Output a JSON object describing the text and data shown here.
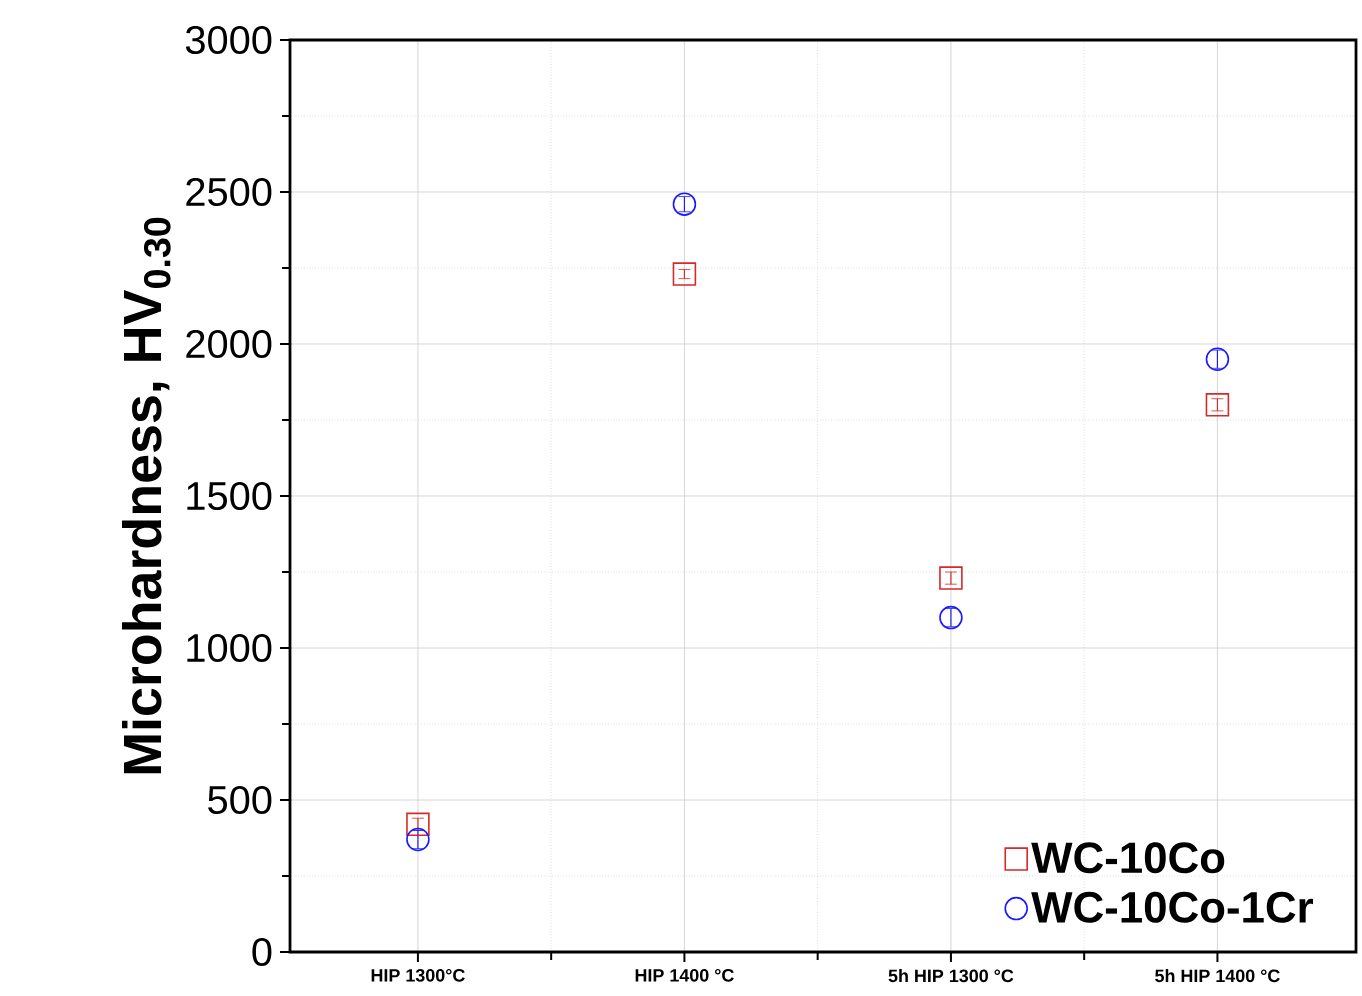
{
  "chart_data": {
    "type": "scatter",
    "ylabel": "Microhardness, HV$_{0.30}$",
    "categories": [
      "HIP 1300°C",
      "HIP 1400 °C",
      "5h HIP 1300 °C",
      "5h HIP 1400 °C"
    ],
    "series": [
      {
        "name": "WC-10Co",
        "color": "#d42a2a",
        "marker": "square",
        "values": [
          420,
          2230,
          1230,
          1800
        ],
        "errors": [
          20,
          15,
          20,
          20
        ]
      },
      {
        "name": "WC-10Co-1Cr",
        "color": "#1a1aff",
        "marker": "circle",
        "values": [
          370,
          2460,
          1100,
          1950
        ],
        "errors": [
          30,
          25,
          30,
          30
        ]
      }
    ],
    "ylim": [
      0,
      3000
    ],
    "yticks": [
      0,
      500,
      1000,
      1500,
      2000,
      2500,
      3000
    ],
    "grid": true,
    "legend": "bottom right"
  }
}
